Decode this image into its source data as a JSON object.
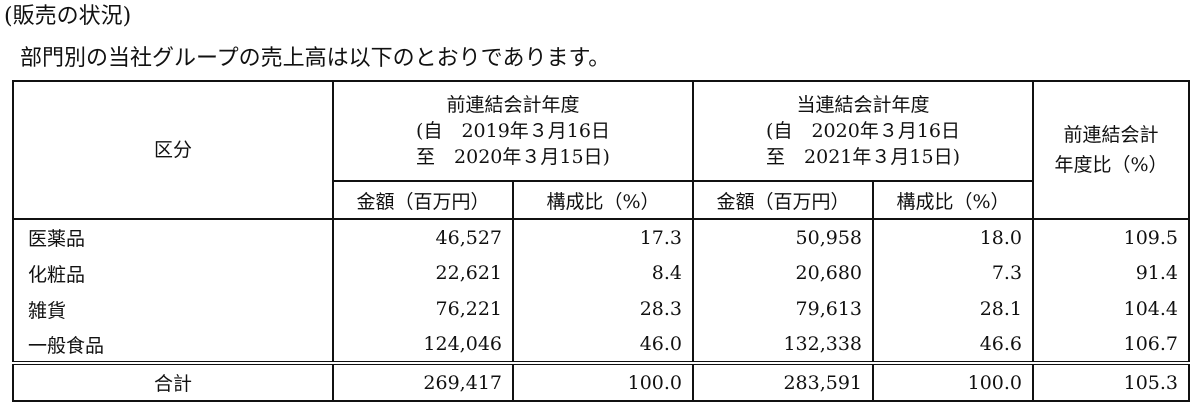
{
  "heading": "(販売の状況)",
  "intro": "部門別の当社グループの売上高は以下のとおりであります。",
  "table": {
    "category_header": "区分",
    "prev_period": {
      "title": "前連結会計年度",
      "from": "(自　2019年３月16日",
      "to": "至　2020年３月15日)"
    },
    "curr_period": {
      "title": "当連結会計年度",
      "from": "(自　2020年３月16日",
      "to": "至　2021年３月15日)"
    },
    "ratio_header_line1": "前連結会計",
    "ratio_header_line2": "年度比（%）",
    "amount_header": "金額（百万円）",
    "composition_header": "構成比（%）",
    "rows": [
      {
        "category": "医薬品",
        "prev_amount": "46,527",
        "prev_ratio": "17.3",
        "curr_amount": "50,958",
        "curr_ratio": "18.0",
        "yoy": "109.5"
      },
      {
        "category": "化粧品",
        "prev_amount": "22,621",
        "prev_ratio": "8.4",
        "curr_amount": "20,680",
        "curr_ratio": "7.3",
        "yoy": "91.4"
      },
      {
        "category": "雑貨",
        "prev_amount": "76,221",
        "prev_ratio": "28.3",
        "curr_amount": "79,613",
        "curr_ratio": "28.1",
        "yoy": "104.4"
      },
      {
        "category": "一般食品",
        "prev_amount": "124,046",
        "prev_ratio": "46.0",
        "curr_amount": "132,338",
        "curr_ratio": "46.6",
        "yoy": "106.7"
      }
    ],
    "total": {
      "category": "合計",
      "prev_amount": "269,417",
      "prev_ratio": "100.0",
      "curr_amount": "283,591",
      "curr_ratio": "100.0",
      "yoy": "105.3"
    }
  }
}
